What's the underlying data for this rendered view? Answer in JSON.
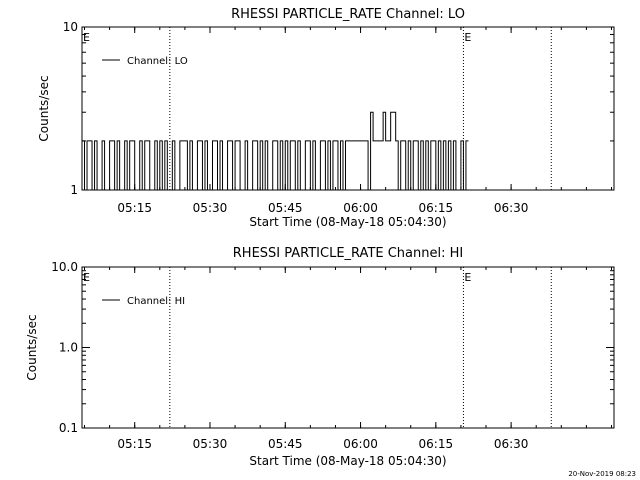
{
  "footer": {
    "timestamp": "20-Nov-2019 08:23"
  },
  "chart_data": [
    {
      "type": "line",
      "title": "RHESSI PARTICLE_RATE Channel: LO",
      "xlabel": "Start Time (08-May-18 05:04:30)",
      "ylabel": "Counts/sec",
      "yscale": "log",
      "xlim": [
        "05:04:30",
        "06:50:30"
      ],
      "ylim": [
        1,
        10
      ],
      "x_tick_labels": [
        "05:15",
        "05:30",
        "05:45",
        "06:00",
        "06:15",
        "06:30"
      ],
      "y_tick_labels": [
        "1",
        "10"
      ],
      "legend": {
        "label": "Channel: LO",
        "placement": "top-left"
      },
      "event_markers": [
        {
          "time": "05:04:30",
          "label": "E"
        },
        {
          "time": "06:20:30",
          "label": "E"
        }
      ],
      "dotted_lines": [
        "05:22:00",
        "06:20:30",
        "06:38:00"
      ],
      "series": [
        {
          "values_note": "counts/sec sampled every 30s from 05:04:30",
          "start": "05:04:30",
          "step_seconds": 30,
          "values": [
            2,
            1,
            2,
            2,
            1,
            2,
            1,
            1,
            2,
            1,
            1,
            2,
            2,
            1,
            2,
            1,
            1,
            2,
            1,
            2,
            2,
            1,
            1,
            2,
            1,
            2,
            2,
            1,
            1,
            2,
            1,
            2,
            1,
            2,
            1,
            1,
            2,
            1,
            1,
            2,
            2,
            2,
            1,
            2,
            1,
            1,
            2,
            2,
            1,
            2,
            1,
            1,
            2,
            2,
            1,
            2,
            1,
            1,
            2,
            2,
            1,
            2,
            2,
            1,
            1,
            2,
            1,
            1,
            2,
            2,
            1,
            2,
            1,
            2,
            1,
            1,
            2,
            2,
            1,
            2,
            1,
            2,
            1,
            2,
            2,
            1,
            2,
            1,
            1,
            2,
            2,
            1,
            2,
            1,
            1,
            2,
            2,
            1,
            2,
            1,
            2,
            2,
            1,
            2,
            1,
            2,
            2,
            2,
            2,
            2,
            2,
            2,
            2,
            2,
            1,
            3,
            2,
            2,
            2,
            2,
            3,
            2,
            2,
            3,
            3,
            2,
            1,
            2,
            2,
            1,
            2,
            1,
            2,
            2,
            1,
            2,
            1,
            2,
            1,
            2,
            2,
            1,
            2,
            1,
            2,
            1,
            2,
            1,
            2,
            1,
            1,
            2,
            1,
            2
          ]
        }
      ]
    },
    {
      "type": "line",
      "title": "RHESSI PARTICLE_RATE Channel: HI",
      "xlabel": "Start Time (08-May-18 05:04:30)",
      "ylabel": "Counts/sec",
      "yscale": "log",
      "xlim": [
        "05:04:30",
        "06:50:30"
      ],
      "ylim": [
        0.1,
        10
      ],
      "x_tick_labels": [
        "05:15",
        "05:30",
        "05:45",
        "06:00",
        "06:15",
        "06:30"
      ],
      "y_tick_labels": [
        "0.1",
        "1.0",
        "10.0"
      ],
      "legend": {
        "label": "Channel: HI",
        "placement": "top-left"
      },
      "event_markers": [
        {
          "time": "05:04:30",
          "label": "E"
        },
        {
          "time": "06:20:30",
          "label": "E"
        }
      ],
      "dotted_lines": [
        "05:22:00",
        "06:20:30",
        "06:38:00"
      ],
      "series": []
    }
  ]
}
